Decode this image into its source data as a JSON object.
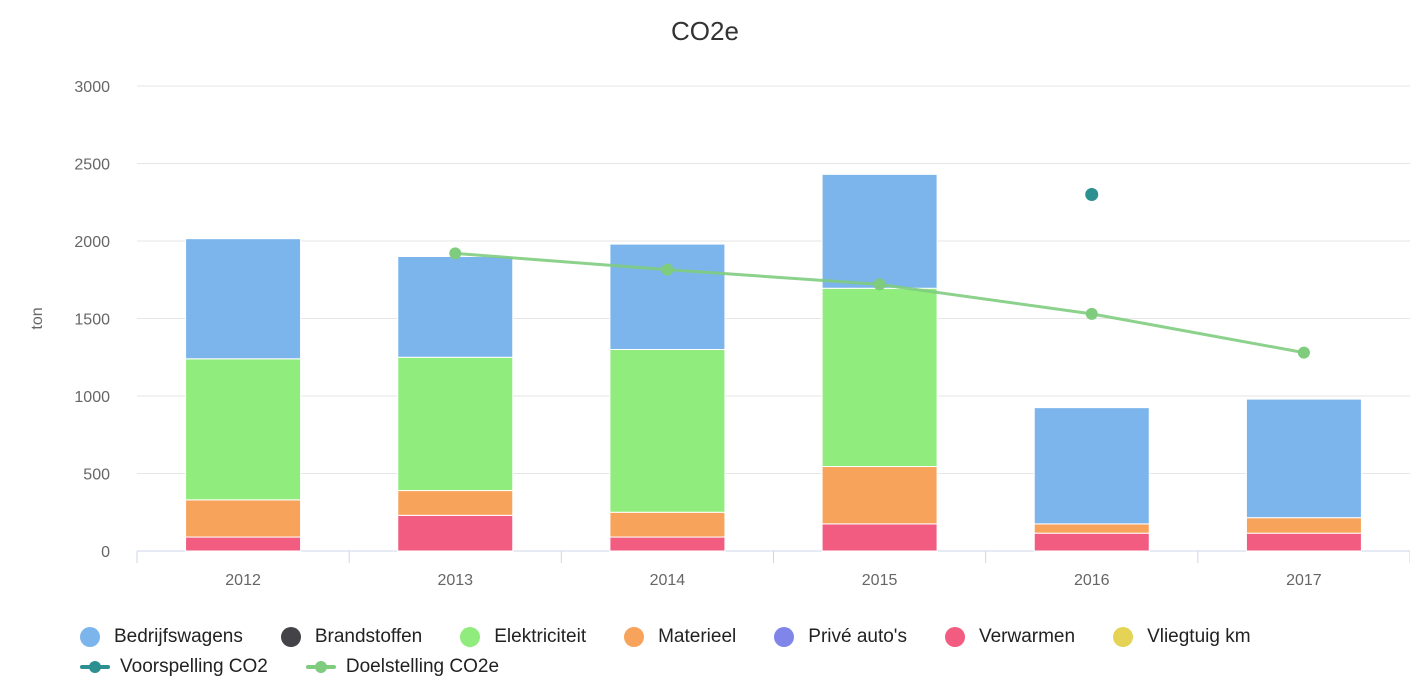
{
  "chart_data": {
    "type": "bar",
    "title": "CO2e",
    "ylabel": "ton",
    "xlabel": "",
    "ylim": [
      0,
      3000
    ],
    "yticks": [
      0,
      500,
      1000,
      1500,
      2000,
      2500,
      3000
    ],
    "categories": [
      "2012",
      "2013",
      "2014",
      "2015",
      "2016",
      "2017"
    ],
    "stacked": true,
    "grid": true,
    "legend_position": "bottom",
    "series": [
      {
        "name": "Verwarmen",
        "type": "bar",
        "color": "#f15c80",
        "values": [
          90,
          230,
          90,
          175,
          115,
          115
        ]
      },
      {
        "name": "Materieel",
        "type": "bar",
        "color": "#f7a35c",
        "values": [
          240,
          160,
          160,
          370,
          60,
          100
        ]
      },
      {
        "name": "Elektriciteit",
        "type": "bar",
        "color": "#90ed7d",
        "values": [
          910,
          860,
          1050,
          1150,
          0,
          0
        ]
      },
      {
        "name": "Bedrijfswagens",
        "type": "bar",
        "color": "#7cb5ec",
        "values": [
          775,
          650,
          680,
          735,
          750,
          765
        ]
      },
      {
        "name": "Brandstoffen",
        "type": "bar",
        "color": "#434348",
        "values": [
          0,
          0,
          0,
          0,
          0,
          0
        ]
      },
      {
        "name": "Privé auto's",
        "type": "bar",
        "color": "#8085e9",
        "values": [
          0,
          0,
          0,
          0,
          0,
          0
        ]
      },
      {
        "name": "Vliegtuig km",
        "type": "bar",
        "color": "#e4d354",
        "values": [
          0,
          0,
          0,
          0,
          0,
          0
        ]
      },
      {
        "name": "Voorspelling CO2",
        "type": "scatter",
        "color": "#2b908f",
        "values": [
          null,
          null,
          null,
          null,
          2300,
          null
        ]
      },
      {
        "name": "Doelstelling CO2e",
        "type": "line",
        "color": "#7fcc7f",
        "values": [
          null,
          1920,
          1815,
          1720,
          1530,
          1280
        ]
      }
    ]
  },
  "legend": {
    "rows": [
      [
        {
          "label": "Bedrijfswagens",
          "color": "#7cb5ec",
          "kind": "dot"
        },
        {
          "label": "Brandstoffen",
          "color": "#434348",
          "kind": "dot"
        },
        {
          "label": "Elektriciteit",
          "color": "#90ed7d",
          "kind": "dot"
        },
        {
          "label": "Materieel",
          "color": "#f7a35c",
          "kind": "dot"
        },
        {
          "label": "Privé auto's",
          "color": "#8085e9",
          "kind": "dot"
        },
        {
          "label": "Verwarmen",
          "color": "#f15c80",
          "kind": "dot"
        },
        {
          "label": "Vliegtuig km",
          "color": "#e4d354",
          "kind": "dot"
        }
      ],
      [
        {
          "label": "Voorspelling CO2",
          "color": "#2b908f",
          "kind": "line"
        },
        {
          "label": "Doelstelling CO2e",
          "color": "#7fcc7f",
          "kind": "line"
        }
      ]
    ]
  }
}
